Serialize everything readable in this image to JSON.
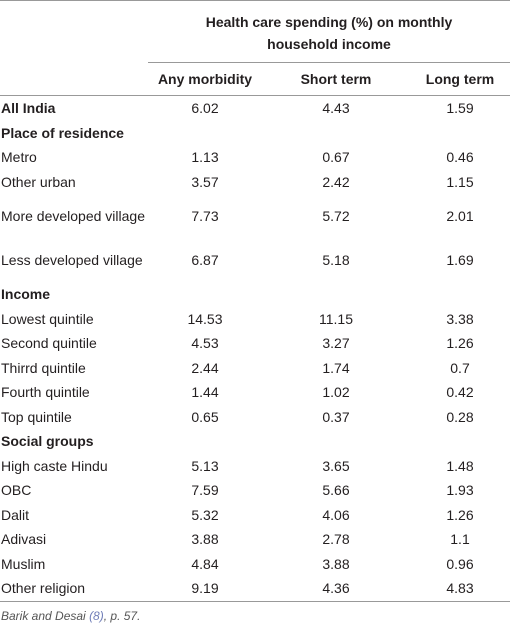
{
  "table": {
    "title": "Health care spending (%) on monthly household income",
    "columns": [
      "Any morbidity",
      "Short term",
      "Long term"
    ],
    "rows": [
      {
        "label": "All India",
        "heading": true,
        "values": [
          "6.02",
          "4.43",
          "1.59"
        ]
      },
      {
        "label": "Place of residence",
        "heading": true
      },
      {
        "label": "Metro",
        "values": [
          "1.13",
          "0.67",
          "0.46"
        ]
      },
      {
        "label": "Other urban",
        "values": [
          "3.57",
          "2.42",
          "1.15"
        ]
      },
      {
        "label": "More developed village",
        "values": [
          "7.73",
          "5.72",
          "2.01"
        ]
      },
      {
        "label": "Less developed village",
        "values": [
          "6.87",
          "5.18",
          "1.69"
        ]
      },
      {
        "label": "Income",
        "heading": true
      },
      {
        "label": "Lowest quintile",
        "values": [
          "14.53",
          "11.15",
          "3.38"
        ]
      },
      {
        "label": "Second quintile",
        "values": [
          "4.53",
          "3.27",
          "1.26"
        ]
      },
      {
        "label": "Thirrd quintile",
        "values": [
          "2.44",
          "1.74",
          "0.7"
        ]
      },
      {
        "label": "Fourth quintile",
        "values": [
          "1.44",
          "1.02",
          "0.42"
        ]
      },
      {
        "label": "Top quintile",
        "values": [
          "0.65",
          "0.37",
          "0.28"
        ]
      },
      {
        "label": "Social groups",
        "heading": true
      },
      {
        "label": "High caste Hindu",
        "values": [
          "5.13",
          "3.65",
          "1.48"
        ]
      },
      {
        "label": "OBC",
        "values": [
          "7.59",
          "5.66",
          "1.93"
        ]
      },
      {
        "label": "Dalit",
        "values": [
          "5.32",
          "4.06",
          "1.26"
        ]
      },
      {
        "label": "Adivasi",
        "values": [
          "3.88",
          "2.78",
          "1.1"
        ]
      },
      {
        "label": "Muslim",
        "values": [
          "4.84",
          "3.88",
          "0.96"
        ]
      },
      {
        "label": "Other religion",
        "values": [
          "9.19",
          "4.36",
          "4.83"
        ]
      }
    ]
  },
  "footnote": {
    "parts": [
      "Barik and Desai",
      "(8)",
      ", p. 57."
    ]
  }
}
